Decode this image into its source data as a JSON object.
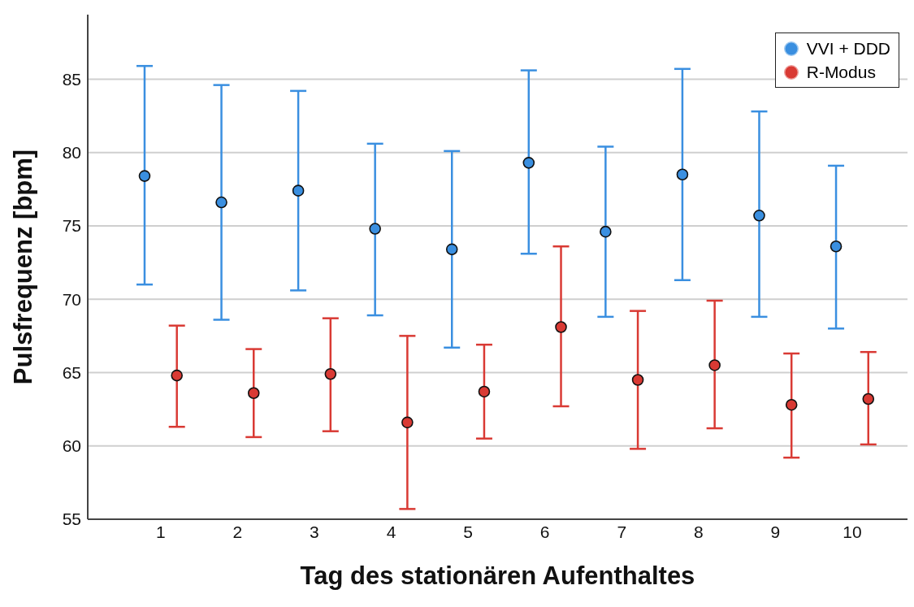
{
  "chart_data": {
    "type": "scatter",
    "xlabel": "Tag des stationären Aufenthaltes",
    "ylabel": "Pulsfrequenz [bpm]",
    "categories": [
      "1",
      "2",
      "3",
      "4",
      "5",
      "6",
      "7",
      "8",
      "9",
      "10"
    ],
    "ylim": [
      55,
      89.4
    ],
    "yticks": [
      55,
      60,
      65,
      70,
      75,
      80,
      85
    ],
    "grid": "y",
    "legend": "top right",
    "marker": "circle",
    "series": [
      {
        "name": "VVI + DDD",
        "color": "#3a8fe0",
        "values": [
          78.4,
          76.6,
          77.4,
          74.8,
          73.4,
          79.3,
          74.6,
          78.5,
          75.7,
          73.6
        ],
        "errors": [
          [
            71.0,
            85.9
          ],
          [
            68.6,
            84.6
          ],
          [
            70.6,
            84.2
          ],
          [
            68.9,
            80.6
          ],
          [
            66.7,
            80.1
          ],
          [
            73.1,
            85.6
          ],
          [
            68.8,
            80.4
          ],
          [
            71.3,
            85.7
          ],
          [
            68.8,
            82.8
          ],
          [
            68.0,
            79.1
          ]
        ]
      },
      {
        "name": "R-Modus",
        "color": "#d93a34",
        "values": [
          64.8,
          63.6,
          64.9,
          61.6,
          63.7,
          68.1,
          64.5,
          65.5,
          62.8,
          63.2
        ],
        "errors": [
          [
            61.3,
            68.2
          ],
          [
            60.6,
            66.6
          ],
          [
            61.0,
            68.7
          ],
          [
            55.7,
            67.5
          ],
          [
            60.5,
            66.9
          ],
          [
            62.7,
            73.6
          ],
          [
            59.8,
            69.2
          ],
          [
            61.2,
            69.9
          ],
          [
            59.2,
            66.3
          ],
          [
            60.1,
            66.4
          ]
        ]
      }
    ]
  }
}
